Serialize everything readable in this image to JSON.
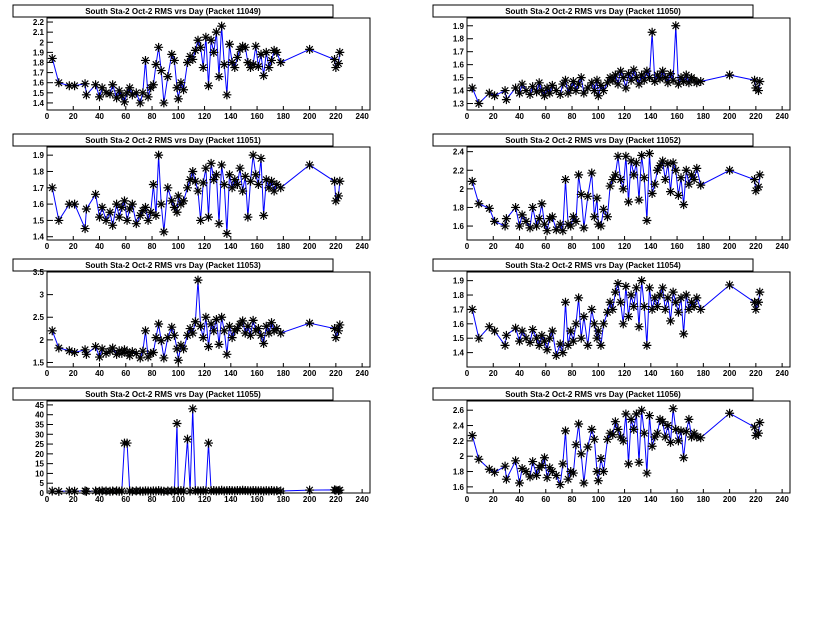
{
  "chart_data": [
    {
      "type": "line",
      "title": "South Sta-2 Oct-2 RMS vrs Day (Packet 11049)",
      "xlabel": "",
      "ylabel": "",
      "xlim": [
        0,
        246
      ],
      "ylim": [
        1.33,
        2.24
      ],
      "xticks": [
        0,
        20,
        40,
        60,
        80,
        100,
        120,
        140,
        160,
        180,
        200,
        220,
        240
      ],
      "yticks": [
        1.4,
        1.5,
        1.6,
        1.7,
        1.8,
        1.9,
        2,
        2.1,
        2.2
      ],
      "y": [
        1.84,
        1.6,
        1.57,
        1.57,
        1.59,
        1.48,
        1.58,
        1.46,
        1.55,
        1.5,
        1.49,
        1.58,
        1.45,
        1.52,
        1.47,
        1.41,
        1.5,
        1.55,
        1.48,
        1.5,
        1.4,
        1.5,
        1.82,
        1.46,
        1.55,
        1.58,
        1.78,
        1.95,
        1.72,
        1.4,
        1.66,
        1.88,
        1.82,
        1.55,
        1.44,
        1.6,
        1.53,
        1.8,
        1.86,
        1.83,
        1.92,
        2.02,
        1.95,
        1.75,
        2.05,
        1.57,
        2.02,
        1.9,
        2.1,
        1.66,
        2.16,
        1.78,
        1.48,
        1.98,
        1.8,
        1.75,
        1.85,
        1.93,
        1.96,
        1.95,
        1.8,
        1.75,
        1.78,
        1.96,
        1.76,
        1.88,
        1.67,
        1.9,
        1.75,
        1.82,
        1.92,
        1.9,
        1.8,
        1.93,
        1.83,
        1.75,
        1.79,
        1.9
      ]
    },
    {
      "type": "line",
      "title": "South Sta-2 Oct-2 RMS vrs Day (Packet 11050)",
      "xlabel": "",
      "ylabel": "",
      "xlim": [
        0,
        246
      ],
      "ylim": [
        1.25,
        1.96
      ],
      "xticks": [
        0,
        20,
        40,
        60,
        80,
        100,
        120,
        140,
        160,
        180,
        200,
        220,
        240
      ],
      "yticks": [
        1.3,
        1.4,
        1.5,
        1.6,
        1.7,
        1.8,
        1.9
      ],
      "y": [
        1.42,
        1.3,
        1.38,
        1.36,
        1.4,
        1.33,
        1.42,
        1.38,
        1.45,
        1.4,
        1.37,
        1.43,
        1.39,
        1.46,
        1.4,
        1.36,
        1.42,
        1.38,
        1.44,
        1.4,
        1.37,
        1.45,
        1.48,
        1.38,
        1.42,
        1.47,
        1.4,
        1.45,
        1.5,
        1.38,
        1.42,
        1.46,
        1.4,
        1.48,
        1.36,
        1.44,
        1.4,
        1.46,
        1.5,
        1.48,
        1.52,
        1.45,
        1.55,
        1.5,
        1.42,
        1.53,
        1.48,
        1.56,
        1.5,
        1.45,
        1.52,
        1.48,
        1.55,
        1.5,
        1.85,
        1.47,
        1.52,
        1.49,
        1.55,
        1.5,
        1.46,
        1.53,
        1.48,
        1.9,
        1.45,
        1.5,
        1.47,
        1.52,
        1.46,
        1.5,
        1.48,
        1.46,
        1.47,
        1.52,
        1.48,
        1.42,
        1.4,
        1.47
      ]
    },
    {
      "type": "line",
      "title": "South Sta-2 Oct-2 RMS vrs Day (Packet 11051)",
      "xlabel": "",
      "ylabel": "",
      "xlim": [
        0,
        246
      ],
      "ylim": [
        1.38,
        1.95
      ],
      "xticks": [
        0,
        20,
        40,
        60,
        80,
        100,
        120,
        140,
        160,
        180,
        200,
        220,
        240
      ],
      "yticks": [
        1.4,
        1.5,
        1.6,
        1.7,
        1.8,
        1.9
      ],
      "y": [
        1.7,
        1.5,
        1.6,
        1.6,
        1.45,
        1.57,
        1.66,
        1.52,
        1.58,
        1.5,
        1.55,
        1.47,
        1.6,
        1.52,
        1.58,
        1.62,
        1.5,
        1.57,
        1.6,
        1.48,
        1.53,
        1.56,
        1.58,
        1.5,
        1.55,
        1.72,
        1.53,
        1.9,
        1.6,
        1.43,
        1.7,
        1.62,
        1.58,
        1.55,
        1.65,
        1.6,
        1.62,
        1.7,
        1.75,
        1.8,
        1.74,
        1.68,
        1.5,
        1.73,
        1.82,
        1.52,
        1.85,
        1.75,
        1.78,
        1.48,
        1.84,
        1.72,
        1.42,
        1.78,
        1.7,
        1.75,
        1.72,
        1.82,
        1.68,
        1.77,
        1.52,
        1.74,
        1.9,
        1.78,
        1.72,
        1.88,
        1.53,
        1.75,
        1.7,
        1.74,
        1.68,
        1.72,
        1.7,
        1.84,
        1.74,
        1.62,
        1.65,
        1.74
      ]
    },
    {
      "type": "line",
      "title": "South Sta-2 Oct-2 RMS vrs Day (Packet 11052)",
      "xlabel": "",
      "ylabel": "",
      "xlim": [
        0,
        246
      ],
      "ylim": [
        1.45,
        2.45
      ],
      "xticks": [
        0,
        20,
        40,
        60,
        80,
        100,
        120,
        140,
        160,
        180,
        200,
        220,
        240
      ],
      "yticks": [
        1.6,
        1.8,
        2,
        2.2,
        2.4
      ],
      "y": [
        2.08,
        1.84,
        1.79,
        1.65,
        1.6,
        1.68,
        1.8,
        1.6,
        1.72,
        1.65,
        1.58,
        1.8,
        1.6,
        1.68,
        1.84,
        1.62,
        1.55,
        1.68,
        1.7,
        1.56,
        1.62,
        1.55,
        2.1,
        1.62,
        1.6,
        1.7,
        1.65,
        2.15,
        1.94,
        1.58,
        1.92,
        2.17,
        1.7,
        1.9,
        1.62,
        1.6,
        1.78,
        1.7,
        2.03,
        2.1,
        2.15,
        2.35,
        2.1,
        2.0,
        2.35,
        1.86,
        2.3,
        2.15,
        2.28,
        1.88,
        2.36,
        2.12,
        1.66,
        2.38,
        1.95,
        2.05,
        2.2,
        2.25,
        2.3,
        2.1,
        2.27,
        1.97,
        2.28,
        2.2,
        1.93,
        2.12,
        1.83,
        2.2,
        2.05,
        2.15,
        2.1,
        2.22,
        2.04,
        2.2,
        2.1,
        1.98,
        2.02,
        2.15
      ]
    },
    {
      "type": "line",
      "title": "South Sta-2 Oct-2 RMS vrs Day (Packet 11053)",
      "xlabel": "",
      "ylabel": "",
      "xlim": [
        0,
        246
      ],
      "ylim": [
        1.4,
        3.5
      ],
      "xticks": [
        0,
        20,
        40,
        60,
        80,
        100,
        120,
        140,
        160,
        180,
        200,
        220,
        240
      ],
      "yticks": [
        1.5,
        2,
        2.5,
        3,
        3.5
      ],
      "y": [
        2.2,
        1.82,
        1.76,
        1.72,
        1.78,
        1.68,
        1.85,
        1.62,
        1.8,
        1.7,
        1.75,
        1.82,
        1.68,
        1.76,
        1.7,
        1.78,
        1.72,
        1.65,
        1.74,
        1.7,
        1.6,
        1.75,
        2.2,
        1.62,
        1.7,
        1.72,
        2.05,
        2.35,
        1.98,
        1.6,
        2.05,
        2.28,
        2.1,
        1.8,
        1.55,
        1.88,
        1.8,
        2.1,
        2.25,
        2.15,
        2.4,
        3.32,
        2.3,
        2.05,
        2.5,
        1.85,
        2.35,
        2.2,
        2.45,
        1.9,
        2.5,
        2.2,
        1.68,
        2.3,
        2.05,
        2.2,
        2.25,
        2.35,
        2.42,
        2.15,
        2.3,
        2.1,
        2.43,
        2.2,
        2.25,
        2.1,
        1.92,
        2.3,
        2.15,
        2.38,
        2.2,
        2.25,
        2.15,
        2.37,
        2.25,
        2.05,
        2.2,
        2.33
      ]
    },
    {
      "type": "line",
      "title": "South Sta-2 Oct-2 RMS vrs Day (Packet 11054)",
      "xlabel": "",
      "ylabel": "",
      "xlim": [
        0,
        246
      ],
      "ylim": [
        1.3,
        1.96
      ],
      "xticks": [
        0,
        20,
        40,
        60,
        80,
        100,
        120,
        140,
        160,
        180,
        200,
        220,
        240
      ],
      "yticks": [
        1.4,
        1.5,
        1.6,
        1.7,
        1.8,
        1.9
      ],
      "y": [
        1.7,
        1.5,
        1.58,
        1.55,
        1.45,
        1.52,
        1.57,
        1.48,
        1.55,
        1.5,
        1.47,
        1.56,
        1.5,
        1.45,
        1.52,
        1.48,
        1.42,
        1.5,
        1.55,
        1.38,
        1.46,
        1.4,
        1.75,
        1.45,
        1.55,
        1.48,
        1.6,
        1.78,
        1.5,
        1.65,
        1.45,
        1.7,
        1.6,
        1.5,
        1.55,
        1.45,
        1.6,
        1.68,
        1.75,
        1.7,
        1.82,
        1.88,
        1.75,
        1.6,
        1.86,
        1.65,
        1.8,
        1.72,
        1.85,
        1.58,
        1.9,
        1.72,
        1.45,
        1.85,
        1.7,
        1.78,
        1.72,
        1.8,
        1.85,
        1.7,
        1.78,
        1.62,
        1.82,
        1.75,
        1.68,
        1.78,
        1.53,
        1.8,
        1.7,
        1.75,
        1.72,
        1.78,
        1.7,
        1.87,
        1.75,
        1.7,
        1.75,
        1.82
      ]
    },
    {
      "type": "line",
      "title": "South Sta-2 Oct-2 RMS vrs Day (Packet 11055)",
      "xlabel": "",
      "ylabel": "",
      "xlim": [
        0,
        246
      ],
      "ylim": [
        0,
        47
      ],
      "xticks": [
        0,
        20,
        40,
        60,
        80,
        100,
        120,
        140,
        160,
        180,
        200,
        220,
        240
      ],
      "yticks": [
        0,
        5,
        10,
        15,
        20,
        25,
        30,
        35,
        40,
        45
      ],
      "y": [
        1,
        0.8,
        1,
        0.9,
        1.1,
        0.8,
        1,
        0.9,
        1.1,
        1,
        0.9,
        1,
        1.1,
        0.9,
        1,
        25.5,
        25.5,
        1,
        0.9,
        1.1,
        1,
        0.9,
        1.1,
        1,
        0.9,
        1.1,
        1,
        1.2,
        1,
        0.9,
        1,
        1.1,
        1,
        35.5,
        1,
        1.2,
        1,
        27.5,
        1,
        43,
        1.2,
        1.1,
        1,
        1.2,
        1.1,
        25.5,
        1.2,
        1.3,
        1.1,
        1.2,
        1.4,
        1.1,
        1.2,
        1.3,
        1.2,
        1.1,
        1.3,
        1.2,
        1.4,
        1.3,
        1.2,
        1.1,
        1.3,
        1.2,
        1.1,
        1.2,
        1,
        1.2,
        1.1,
        1.3,
        1.1,
        1.2,
        1,
        1.5,
        1.6,
        1.4,
        1.2,
        1.5
      ]
    },
    {
      "type": "line",
      "title": "South Sta-2 Oct-2 RMS vrs Day (Packet 11056)",
      "xlabel": "",
      "ylabel": "",
      "xlim": [
        0,
        246
      ],
      "ylim": [
        1.52,
        2.72
      ],
      "xticks": [
        0,
        20,
        40,
        60,
        80,
        100,
        120,
        140,
        160,
        180,
        200,
        220,
        240
      ],
      "yticks": [
        1.6,
        1.8,
        2,
        2.2,
        2.4,
        2.6
      ],
      "y": [
        2.27,
        1.96,
        1.83,
        1.79,
        1.87,
        1.7,
        1.94,
        1.65,
        1.84,
        1.8,
        1.73,
        1.93,
        1.75,
        1.85,
        1.88,
        1.98,
        1.72,
        1.85,
        1.8,
        1.75,
        1.63,
        1.9,
        2.33,
        1.7,
        1.8,
        1.78,
        2.15,
        2.42,
        2.03,
        1.65,
        2.12,
        2.35,
        2.22,
        1.8,
        1.68,
        1.97,
        1.8,
        2.22,
        2.3,
        2.28,
        2.45,
        2.35,
        2.25,
        2.2,
        2.55,
        1.9,
        2.48,
        2.35,
        2.55,
        1.92,
        2.6,
        2.3,
        1.78,
        2.53,
        2.13,
        2.25,
        2.3,
        2.48,
        2.45,
        2.25,
        2.4,
        2.18,
        2.62,
        2.35,
        2.2,
        2.33,
        1.98,
        2.32,
        2.48,
        2.25,
        2.3,
        2.25,
        2.24,
        2.56,
        2.38,
        2.27,
        2.3,
        2.44
      ]
    }
  ],
  "x_days": [
    4,
    9,
    17,
    21,
    29,
    30,
    37,
    40,
    42,
    45,
    48,
    50,
    53,
    55,
    57,
    59,
    61,
    63,
    65,
    68,
    71,
    73,
    75,
    77,
    79,
    81,
    83,
    85,
    87,
    89,
    92,
    95,
    97,
    99,
    100,
    102,
    104,
    107,
    109,
    111,
    113,
    115,
    117,
    119,
    121,
    123,
    125,
    127,
    129,
    131,
    133,
    135,
    137,
    139,
    141,
    143,
    145,
    147,
    149,
    151,
    153,
    155,
    157,
    159,
    161,
    163,
    165,
    167,
    169,
    171,
    173,
    175,
    178,
    200,
    219,
    220,
    222,
    223
  ],
  "colors": {
    "line": "#0000ff",
    "marker": "#000000",
    "frame": "#000000"
  }
}
